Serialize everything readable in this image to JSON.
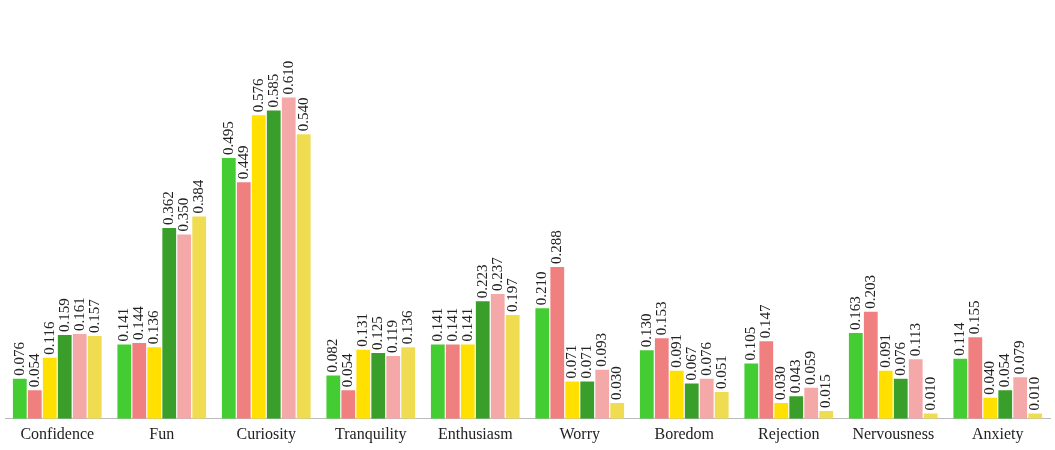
{
  "chart_data": {
    "type": "bar",
    "categories": [
      "Confidence",
      "Fun",
      "Curiosity",
      "Tranquility",
      "Enthusiasm",
      "Worry",
      "Boredom",
      "Rejection",
      "Nervousness",
      "Anxiety"
    ],
    "series": [
      {
        "color": "#44cc33",
        "values": [
          0.076,
          0.141,
          0.495,
          0.082,
          0.141,
          0.21,
          0.13,
          0.105,
          0.163,
          0.114
        ],
        "value_labels": [
          "0.076",
          "0.141",
          "0.495",
          "0.082",
          "0.141",
          "0.210",
          "0.130",
          "0.105",
          "0.163",
          "0.114"
        ]
      },
      {
        "color": "#f08080",
        "values": [
          0.054,
          0.144,
          0.449,
          0.054,
          0.141,
          0.288,
          0.153,
          0.147,
          0.203,
          0.155
        ],
        "value_labels": [
          "0.054",
          "0.144",
          "0.449",
          "0.054",
          "0.141",
          "0.288",
          "0.153",
          "0.147",
          "0.203",
          "0.155"
        ]
      },
      {
        "color": "#ffe000",
        "values": [
          0.116,
          0.136,
          0.576,
          0.131,
          0.141,
          0.071,
          0.091,
          0.03,
          0.091,
          0.04
        ],
        "value_labels": [
          "0.116",
          "0.136",
          "0.576",
          "0.131",
          "0.141",
          "0.071",
          "0.091",
          "0.030",
          "0.091",
          "0.040"
        ]
      },
      {
        "color": "#3a9e2a",
        "values": [
          0.159,
          0.362,
          0.585,
          0.125,
          0.223,
          0.071,
          0.067,
          0.043,
          0.076,
          0.054
        ],
        "value_labels": [
          "0.159",
          "0.362",
          "0.585",
          "0.125",
          "0.223",
          "0.071",
          "0.067",
          "0.043",
          "0.076",
          "0.054"
        ]
      },
      {
        "color": "#f5a8a8",
        "values": [
          0.161,
          0.35,
          0.61,
          0.119,
          0.237,
          0.093,
          0.076,
          0.059,
          0.113,
          0.079
        ],
        "value_labels": [
          "0.161",
          "0.350",
          "0.610",
          "0.119",
          "0.237",
          "0.093",
          "0.076",
          "0.059",
          "0.113",
          "0.079"
        ]
      },
      {
        "color": "#f0dc50",
        "values": [
          0.157,
          0.384,
          0.54,
          0.136,
          0.197,
          0.03,
          0.051,
          0.015,
          0.01,
          0.01
        ],
        "value_labels": [
          "0.157",
          "0.384",
          "0.540",
          "0.136",
          "0.197",
          "0.030",
          "0.051",
          "0.015",
          "0.010",
          "0.010"
        ]
      }
    ]
  }
}
